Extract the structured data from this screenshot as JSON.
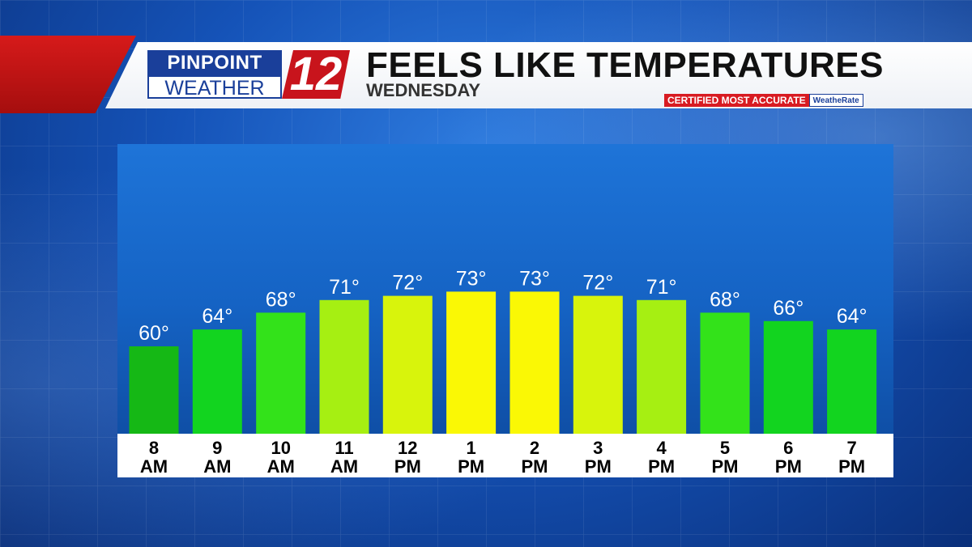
{
  "header": {
    "brand_top": "PINPOINT",
    "brand_bottom": "WEATHER",
    "brand_number": "12",
    "title": "FEELS LIKE TEMPERATURES",
    "subtitle": "WEDNESDAY",
    "certified": "CERTIFIED MOST ACCURATE",
    "certifier": "WeatheRate"
  },
  "colors": {
    "background": "#1553b8",
    "panel": "#1563c4",
    "accent_red": "#d61a1a",
    "brand_blue": "#1a3f9a"
  },
  "chart_data": {
    "type": "bar",
    "categories": [
      "8 AM",
      "9 AM",
      "10 AM",
      "11 AM",
      "12 PM",
      "1 PM",
      "2 PM",
      "3 PM",
      "4 PM",
      "5 PM",
      "6 PM",
      "7 PM"
    ],
    "tick_hours": [
      "8",
      "9",
      "10",
      "11",
      "12",
      "1",
      "2",
      "3",
      "4",
      "5",
      "6",
      "7"
    ],
    "tick_periods": [
      "AM",
      "AM",
      "AM",
      "AM",
      "PM",
      "PM",
      "PM",
      "PM",
      "PM",
      "PM",
      "PM",
      "PM"
    ],
    "values": [
      60,
      64,
      68,
      71,
      72,
      73,
      73,
      72,
      71,
      68,
      66,
      64
    ],
    "value_labels": [
      "60°",
      "64°",
      "68°",
      "71°",
      "72°",
      "73°",
      "73°",
      "72°",
      "71°",
      "68°",
      "66°",
      "64°"
    ],
    "bar_colors": [
      "#15b815",
      "#12d41f",
      "#33e21a",
      "#a6ef12",
      "#d8f40c",
      "#faf805",
      "#faf805",
      "#d8f40c",
      "#a6ef12",
      "#33e21a",
      "#12d41f",
      "#12d41f"
    ],
    "unit": "°F",
    "title": "FEELS LIKE TEMPERATURES",
    "subtitle": "WEDNESDAY",
    "xlabel": "",
    "ylabel": "",
    "grid": false,
    "legend": "none"
  }
}
